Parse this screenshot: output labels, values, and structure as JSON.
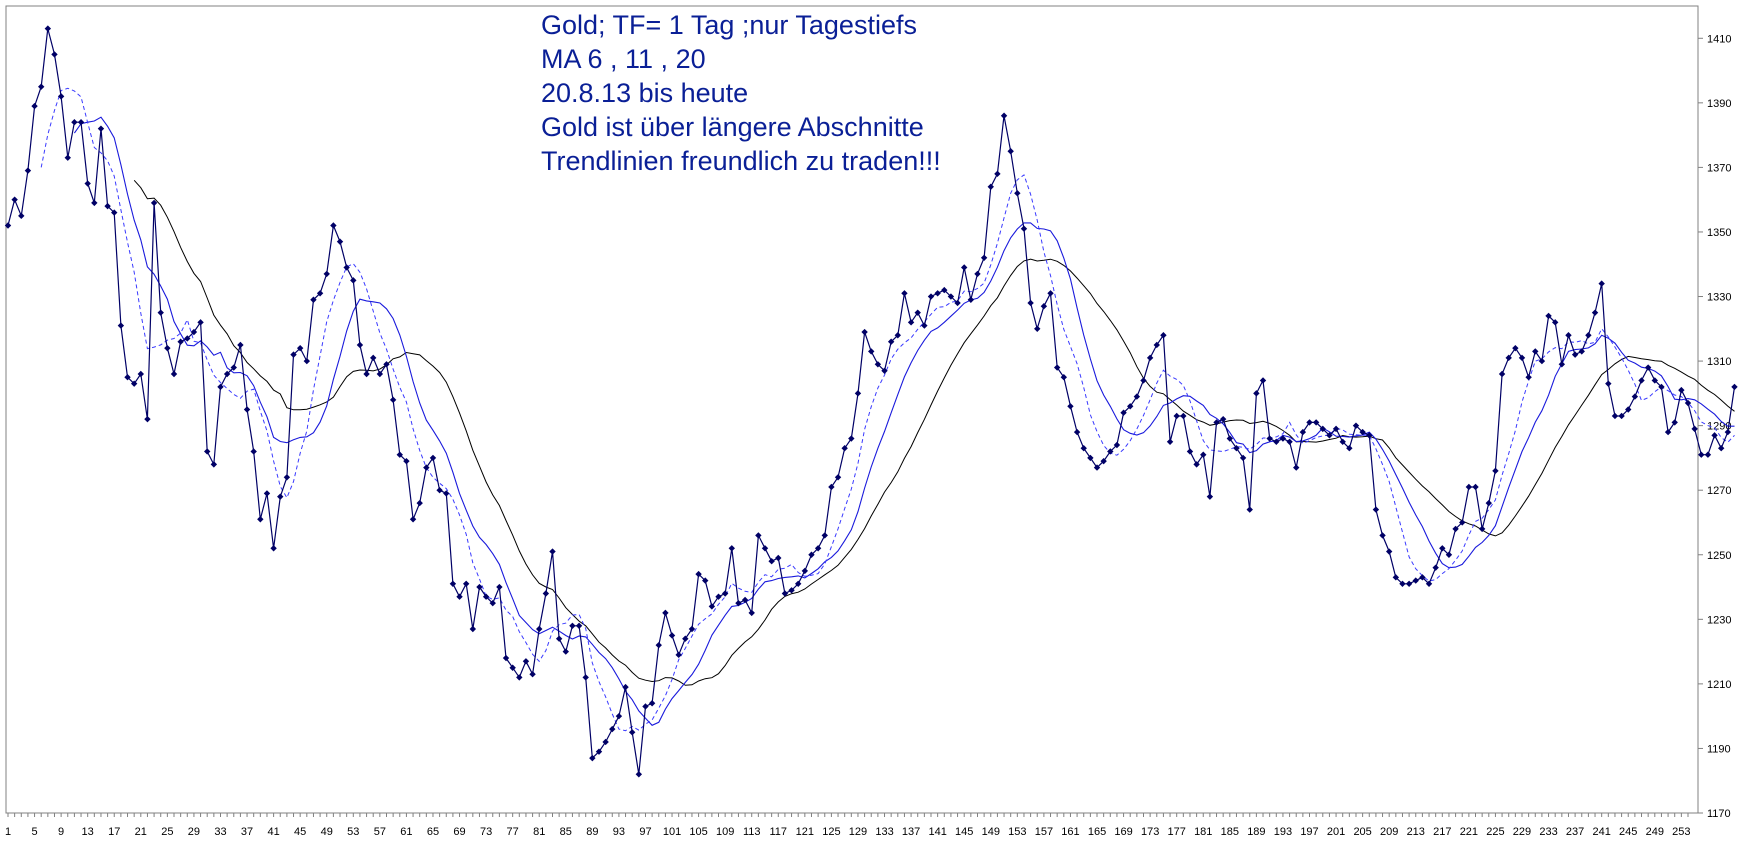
{
  "chart_data": {
    "type": "line",
    "annotation_lines": [
      "Gold; TF= 1 Tag ;nur Tagestiefs",
      "MA 6 , 11  , 20",
      "20.8.13 bis heute",
      "Gold ist über längere Abschnitte",
      "Trendlinien freundlich zu traden!!!"
    ],
    "xlim": [
      1,
      254
    ],
    "ylim": [
      1170,
      1420
    ],
    "x_ticks": [
      1,
      5,
      9,
      13,
      17,
      21,
      25,
      29,
      33,
      37,
      41,
      45,
      49,
      53,
      57,
      61,
      65,
      69,
      73,
      77,
      81,
      85,
      89,
      93,
      97,
      101,
      105,
      109,
      113,
      117,
      121,
      125,
      129,
      133,
      137,
      141,
      145,
      149,
      153,
      157,
      161,
      165,
      169,
      173,
      177,
      181,
      185,
      189,
      193,
      197,
      201,
      205,
      209,
      213,
      217,
      221,
      225,
      229,
      233,
      237,
      241,
      245,
      249,
      253
    ],
    "y_ticks": [
      1170,
      1190,
      1210,
      1230,
      1250,
      1270,
      1290,
      1310,
      1330,
      1350,
      1370,
      1390,
      1410
    ],
    "grid": false,
    "legend": "none",
    "colors": {
      "price": "#000066",
      "ma6": "#3a3aff",
      "ma11": "#1a1adc",
      "ma20": "#000000"
    },
    "ma_periods": [
      6,
      11,
      20
    ],
    "lows": [
      1352,
      1360,
      1355,
      1369,
      1389,
      1395,
      1413,
      1405,
      1392,
      1373,
      1384,
      1384,
      1365,
      1359,
      1382,
      1358,
      1356,
      1321,
      1305,
      1303,
      1306,
      1292,
      1359,
      1325,
      1314,
      1306,
      1316,
      1317,
      1319,
      1322,
      1282,
      1278,
      1302,
      1306,
      1308,
      1315,
      1295,
      1282,
      1261,
      1269,
      1252,
      1268,
      1274,
      1312,
      1314,
      1310,
      1329,
      1331,
      1337,
      1352,
      1347,
      1339,
      1335,
      1315,
      1306,
      1311,
      1306,
      1309,
      1298,
      1281,
      1279,
      1261,
      1266,
      1277,
      1280,
      1270,
      1269,
      1241,
      1237,
      1241,
      1227,
      1240,
      1237,
      1235,
      1240,
      1218,
      1215,
      1212,
      1217,
      1213,
      1227,
      1238,
      1251,
      1224,
      1220,
      1228,
      1228,
      1212,
      1187,
      1189,
      1192,
      1196,
      1200,
      1209,
      1195,
      1182,
      1203,
      1204,
      1222,
      1232,
      1225,
      1219,
      1224,
      1227,
      1244,
      1242,
      1234,
      1237,
      1238,
      1252,
      1235,
      1236,
      1232,
      1256,
      1252,
      1248,
      1249,
      1238,
      1239,
      1241,
      1245,
      1250,
      1252,
      1256,
      1271,
      1274,
      1283,
      1286,
      1300,
      1319,
      1313,
      1309,
      1307,
      1316,
      1318,
      1331,
      1322,
      1325,
      1321,
      1330,
      1331,
      1332,
      1330,
      1328,
      1339,
      1329,
      1337,
      1342,
      1364,
      1368,
      1386,
      1375,
      1362,
      1351,
      1328,
      1320,
      1327,
      1331,
      1308,
      1305,
      1296,
      1288,
      1283,
      1280,
      1277,
      1279,
      1282,
      1284,
      1294,
      1296,
      1299,
      1304,
      1311,
      1315,
      1318,
      1285,
      1293,
      1293,
      1282,
      1278,
      1281,
      1268,
      1291,
      1292,
      1286,
      1283,
      1280,
      1264,
      1300,
      1304,
      1286,
      1285,
      1286,
      1285,
      1277,
      1288,
      1291,
      1291,
      1289,
      1287,
      1289,
      1285,
      1283,
      1290,
      1288,
      1287,
      1264,
      1256,
      1251,
      1243,
      1241,
      1241,
      1242,
      1243,
      1241,
      1246,
      1252,
      1250,
      1258,
      1260,
      1271,
      1271,
      1258,
      1266,
      1276,
      1306,
      1311,
      1314,
      1311,
      1305,
      1313,
      1310,
      1324,
      1322,
      1309,
      1318,
      1312,
      1313,
      1318,
      1325,
      1334,
      1303,
      1293,
      1293,
      1295,
      1299,
      1304,
      1308,
      1304,
      1302,
      1288,
      1291,
      1301,
      1297,
      1289,
      1281,
      1281,
      1287,
      1283,
      1288,
      1302
    ]
  }
}
